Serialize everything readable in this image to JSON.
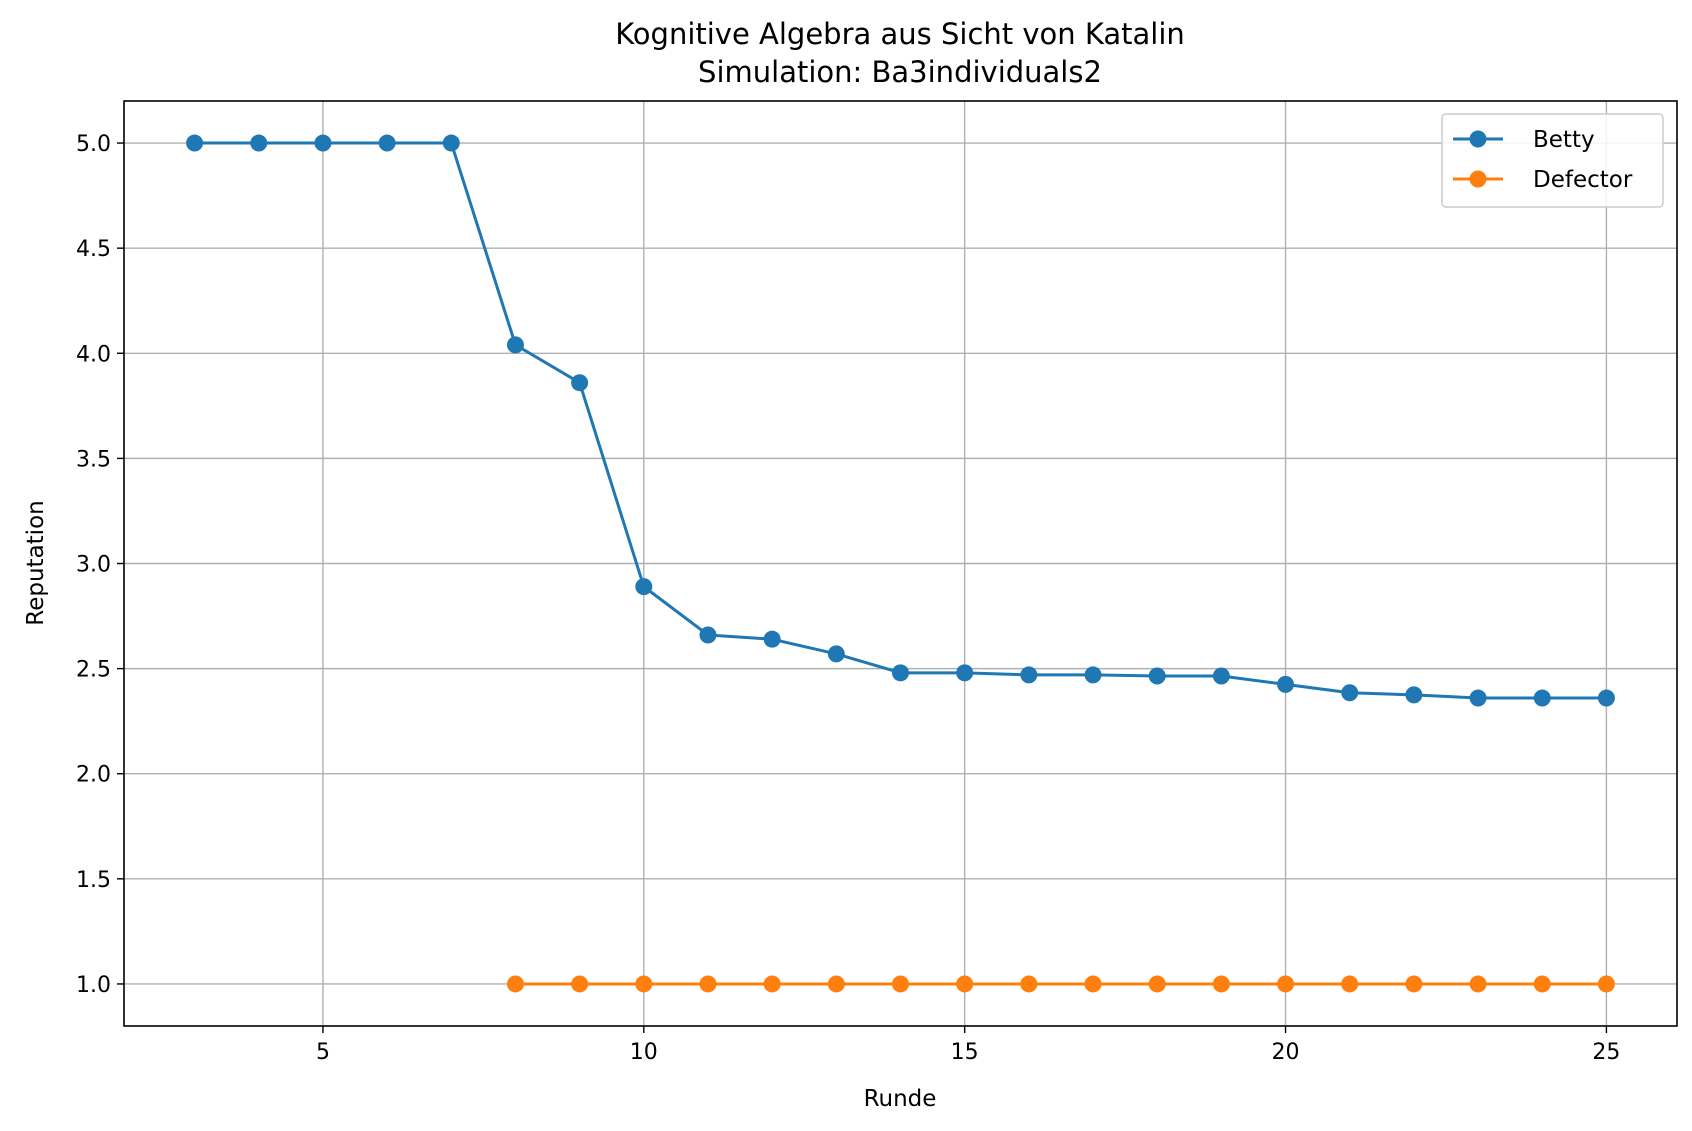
{
  "chart_data": {
    "type": "line",
    "title": "Kognitive Algebra aus Sicht von Katalin",
    "subtitle": "Simulation: Ba3individuals2",
    "xlabel": "Runde",
    "ylabel": "Reputation",
    "xlim": [
      1.9,
      26.1
    ],
    "ylim": [
      0.8,
      5.2
    ],
    "xticks": [
      5,
      10,
      15,
      20,
      25
    ],
    "xtick_labels": [
      "5",
      "10",
      "15",
      "20",
      "25"
    ],
    "yticks": [
      1.0,
      1.5,
      2.0,
      2.5,
      3.0,
      3.5,
      4.0,
      4.5,
      5.0
    ],
    "ytick_labels": [
      "1.0",
      "1.5",
      "2.0",
      "2.5",
      "3.0",
      "3.5",
      "4.0",
      "4.5",
      "5.0"
    ],
    "grid": true,
    "legend_position": "top-right",
    "series": [
      {
        "name": "Betty",
        "color": "#1f77b4",
        "marker": "circle",
        "x": [
          3,
          4,
          5,
          6,
          7,
          8,
          9,
          10,
          11,
          12,
          13,
          14,
          15,
          16,
          17,
          18,
          19,
          20,
          21,
          22,
          23,
          24,
          25
        ],
        "y": [
          5.0,
          5.0,
          5.0,
          5.0,
          5.0,
          4.04,
          3.86,
          2.89,
          2.66,
          2.64,
          2.57,
          2.48,
          2.48,
          2.47,
          2.47,
          2.465,
          2.465,
          2.425,
          2.385,
          2.375,
          2.36,
          2.36,
          2.36
        ]
      },
      {
        "name": "Defector",
        "color": "#ff7f0e",
        "marker": "circle",
        "x": [
          8,
          9,
          10,
          11,
          12,
          13,
          14,
          15,
          16,
          17,
          18,
          19,
          20,
          21,
          22,
          23,
          24,
          25
        ],
        "y": [
          1.0,
          1.0,
          1.0,
          1.0,
          1.0,
          1.0,
          1.0,
          1.0,
          1.0,
          1.0,
          1.0,
          1.0,
          1.0,
          1.0,
          1.0,
          1.0,
          1.0,
          1.0
        ]
      }
    ]
  }
}
